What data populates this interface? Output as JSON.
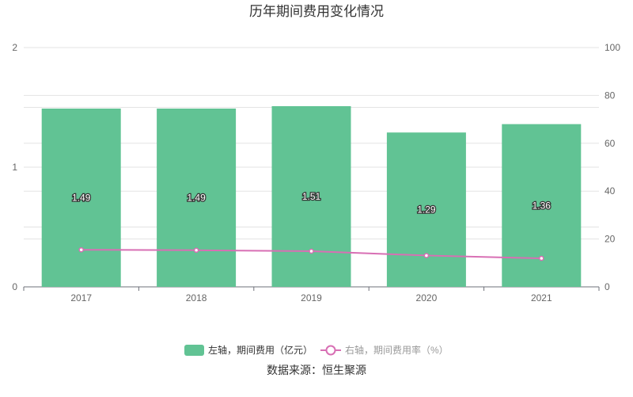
{
  "chart_data": {
    "type": "bar",
    "title": "历年期间费用变化情况",
    "categories": [
      "2017",
      "2018",
      "2019",
      "2020",
      "2021"
    ],
    "series": [
      {
        "name": "左轴，期间费用（亿元）",
        "type": "bar",
        "axis": "left",
        "values": [
          1.49,
          1.49,
          1.51,
          1.29,
          1.36
        ],
        "color": "#61c394"
      },
      {
        "name": "右轴，期间费用率（%）",
        "type": "line",
        "axis": "right",
        "values": [
          15.5,
          15.3,
          14.9,
          13.1,
          11.9
        ],
        "color": "#d86fb4"
      }
    ],
    "y_left": {
      "ylim": [
        0,
        2
      ],
      "ticks": [
        "0",
        "1",
        "2"
      ]
    },
    "y_right": {
      "ylim": [
        0,
        100
      ],
      "ticks": [
        "0",
        "20",
        "40",
        "60",
        "80",
        "100"
      ]
    },
    "grid": true,
    "legend_position": "bottom"
  },
  "source_text": "数据来源：恒生聚源"
}
